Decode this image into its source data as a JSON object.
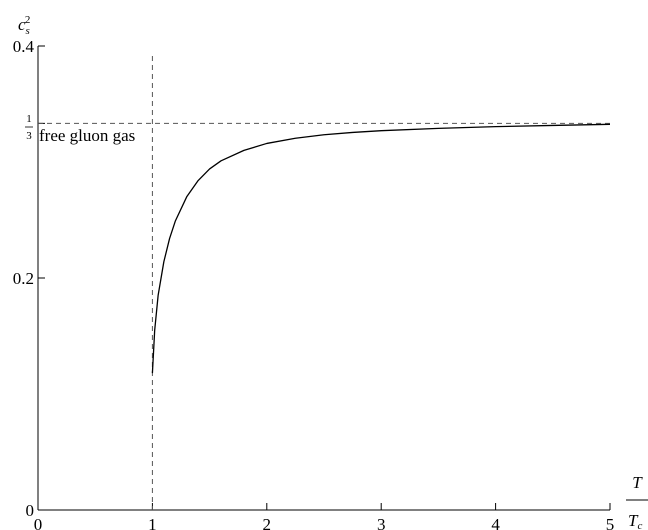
{
  "chart_data": {
    "type": "line",
    "title": "",
    "xlabel_num": "T",
    "xlabel_den": "T",
    "xlabel_den_sub": "c",
    "ylabel_base": "c",
    "ylabel_sub": "s",
    "ylabel_sup": "2",
    "xlim": [
      0,
      5
    ],
    "ylim": [
      0,
      0.4
    ],
    "grid": false,
    "xticks": [
      0,
      1,
      2,
      3,
      4,
      5
    ],
    "xtick_labels": [
      "0",
      "1",
      "2",
      "3",
      "4",
      "5"
    ],
    "yticks": [
      0,
      0.2,
      0.4
    ],
    "ytick_labels": [
      "0",
      "0.2",
      "0.4"
    ],
    "hline": {
      "y": 0.3333,
      "label_num": "1",
      "label_den": "3",
      "annotation": "free gluon gas",
      "style": "dashed"
    },
    "vline": {
      "x": 1,
      "style": "dashed"
    },
    "series": [
      {
        "x": [
          1.0,
          1.02,
          1.05,
          1.1,
          1.15,
          1.2,
          1.3,
          1.4,
          1.5,
          1.6,
          1.8,
          2.0,
          2.25,
          2.5,
          2.75,
          3.0,
          3.5,
          4.0,
          4.5,
          5.0
        ],
        "values": [
          0.118,
          0.155,
          0.185,
          0.214,
          0.234,
          0.249,
          0.27,
          0.284,
          0.294,
          0.301,
          0.31,
          0.316,
          0.3205,
          0.3235,
          0.3255,
          0.327,
          0.329,
          0.3305,
          0.3315,
          0.3325
        ]
      }
    ]
  }
}
